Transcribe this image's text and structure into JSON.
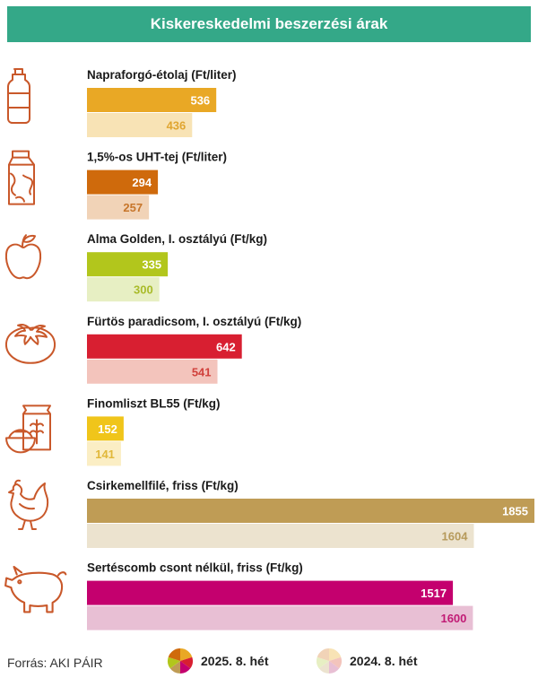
{
  "header": {
    "title": "Kiskereskedelmi beszerzési árak"
  },
  "footer": {
    "source": "Forrás: AKI PÁIR"
  },
  "legend": {
    "current": "2025. 8. hét",
    "previous": "2024. 8. hét"
  },
  "chart_data": {
    "type": "bar",
    "orientation": "horizontal",
    "title": "Kiskereskedelmi beszerzési árak",
    "series_names": [
      "2025. 8. hét",
      "2024. 8. hét"
    ],
    "categories": [
      {
        "label": "Napraforgó-étolaj (Ft/liter)",
        "icon": "oil-bottle-icon",
        "current": 536,
        "previous": 436,
        "color": "#e9a825",
        "light": "#f8e3b5",
        "text_current": "#ffffff",
        "text_previous": "#e0a530"
      },
      {
        "label": "1,5%-os UHT-tej (Ft/liter)",
        "icon": "milk-carton-icon",
        "current": 294,
        "previous": 257,
        "color": "#cf6a0c",
        "light": "#f1d3b7",
        "text_current": "#ffffff",
        "text_previous": "#c7762b"
      },
      {
        "label": "Alma Golden, I. osztályú (Ft/kg)",
        "icon": "apple-icon",
        "current": 335,
        "previous": 300,
        "color": "#b2c61c",
        "light": "#e7efc3",
        "text_current": "#ffffff",
        "text_previous": "#a9bb2a"
      },
      {
        "label": "Fürtös paradicsom, I. osztályú (Ft/kg)",
        "icon": "tomato-icon",
        "current": 642,
        "previous": 541,
        "color": "#d81f31",
        "light": "#f3c4bc",
        "text_current": "#ffffff",
        "text_previous": "#d1413c"
      },
      {
        "label": "Finomliszt BL55 (Ft/kg)",
        "icon": "flour-bag-icon",
        "current": 152,
        "previous": 141,
        "color": "#f0c51a",
        "light": "#fbeec4",
        "text_current": "#ffffff",
        "text_previous": "#e1b83a"
      },
      {
        "label": "Csirkemellfilé, friss (Ft/kg)",
        "icon": "chicken-icon",
        "current": 1855,
        "previous": 1604,
        "color": "#bf9c55",
        "light": "#ece3cf",
        "text_current": "#ffffff",
        "text_previous": "#b69a5b"
      },
      {
        "label": "Sertéscomb csont nélkül, friss (Ft/kg)",
        "icon": "pig-icon",
        "current": 1517,
        "previous": 1600,
        "color": "#c4006e",
        "light": "#e8bfd4",
        "text_current": "#ffffff",
        "text_previous": "#c11b75"
      }
    ],
    "xlim": [
      0,
      1855
    ],
    "grid": false,
    "legend_position": "bottom",
    "icon_color": "#c9582a"
  }
}
